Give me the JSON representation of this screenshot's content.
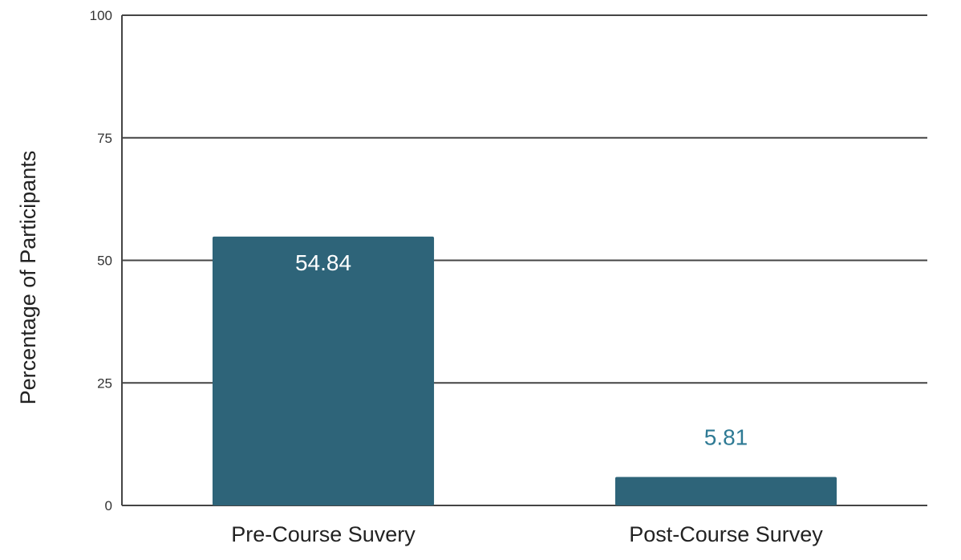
{
  "chart_data": {
    "type": "bar",
    "categories": [
      "Pre-Course Suvery",
      "Post-Course Survey"
    ],
    "values": [
      54.84,
      5.81
    ],
    "data_labels": [
      "54.84",
      "5.81"
    ],
    "title": "",
    "xlabel": "",
    "ylabel": "Percentage of Participants",
    "ylim": [
      0,
      100
    ],
    "yticks": [
      0,
      25,
      50,
      75,
      100
    ],
    "ytick_labels": [
      "0",
      "25",
      "50",
      "75",
      "100"
    ],
    "grid": true,
    "legend": "none",
    "bar_color": "#2e6479",
    "label_inside_color": "#ffffff",
    "label_outside_color": "#2e7a94"
  }
}
